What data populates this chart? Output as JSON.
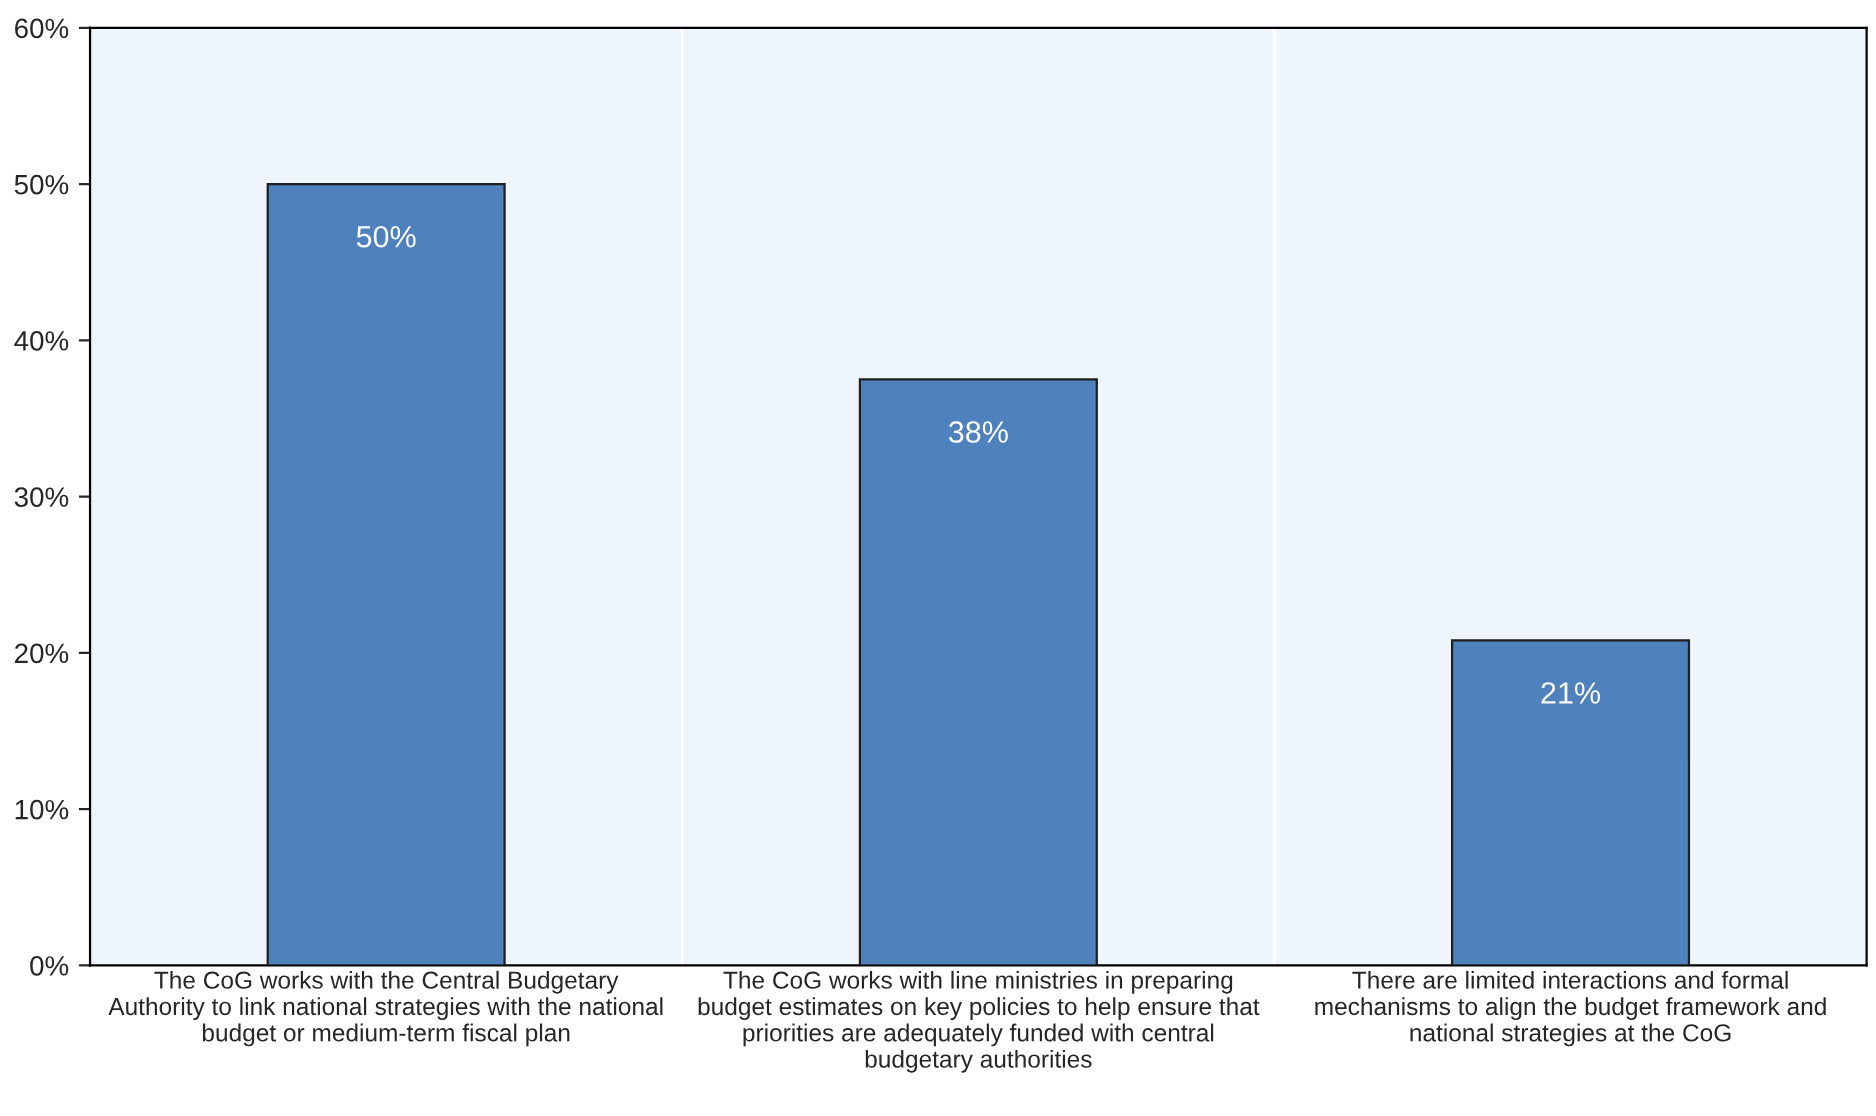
{
  "chart_data": {
    "type": "bar",
    "categories": [
      "The CoG works with the Central Budgetary\nAuthority to link national strategies with the national\nbudget or medium-term fiscal plan",
      "The CoG works with line ministries in preparing\nbudget estimates on key policies to help ensure that\npriorities are adequately funded with central\nbudgetary authorities",
      "There are limited interactions and formal\nmechanisms to align the budget framework and\nnational strategies at the CoG"
    ],
    "values": [
      50,
      37.5,
      20.8
    ],
    "value_labels": [
      "50%",
      "38%",
      "21%"
    ],
    "color": "#4f81bd",
    "ylim": [
      0,
      60
    ],
    "yticks": [
      {
        "value": 0,
        "label": "0%"
      },
      {
        "value": 10,
        "label": "10%"
      },
      {
        "value": 20,
        "label": "20%"
      },
      {
        "value": 30,
        "label": "30%"
      },
      {
        "value": 40,
        "label": "40%"
      },
      {
        "value": 50,
        "label": "50%"
      },
      {
        "value": 60,
        "label": "60%"
      }
    ],
    "grid": false,
    "legend": false
  }
}
